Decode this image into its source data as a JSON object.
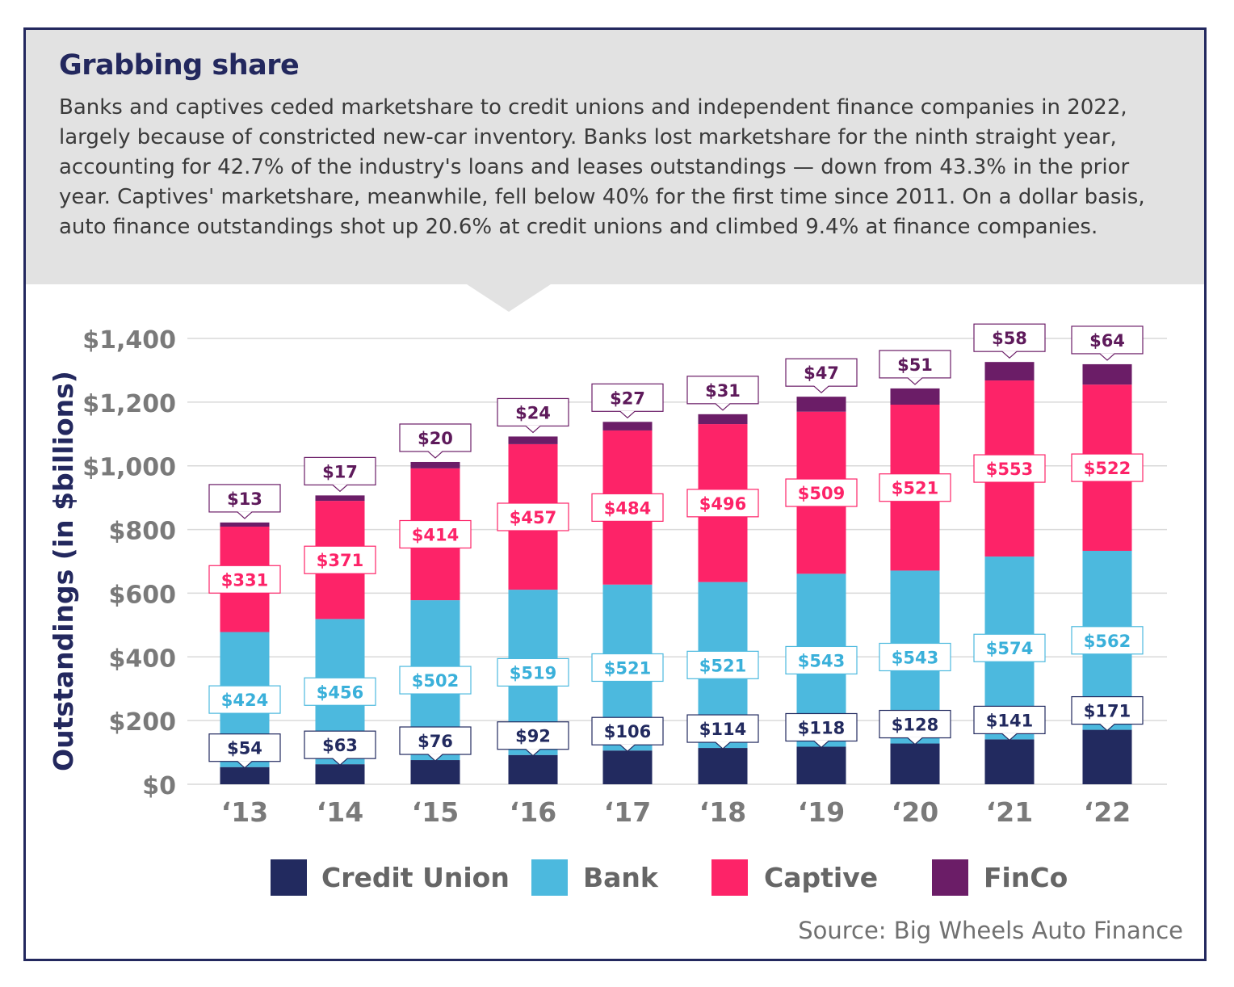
{
  "header": {
    "title": "Grabbing share",
    "subtitle": "Banks and captives ceded marketshare to credit unions and independent finance companies in 2022, largely because of constricted new-car inventory. Banks lost marketshare for the ninth straight year, accounting for 42.7% of the industry's loans and leases outstandings — down from 43.3% in the prior year. Captives' marketshare, meanwhile, fell below 40% for the first time since 2011. On a dollar basis, auto finance outstandings shot up 20.6% at credit unions and climbed 9.4% at finance companies."
  },
  "source": "Source: Big Wheels Auto Finance",
  "colors": {
    "frame": "#23285e",
    "header_bg": "#e2e2e2",
    "gridline": "#d9d9d9",
    "tick_text": "#7a7a7a",
    "ylabel_text": "#23285e"
  },
  "chart_data": {
    "type": "bar",
    "stacked": true,
    "categories": [
      "‘13",
      "‘14",
      "‘15",
      "‘16",
      "‘17",
      "‘18",
      "‘19",
      "‘20",
      "‘21",
      "‘22"
    ],
    "series": [
      {
        "name": "Credit Union",
        "color": "#222a5f",
        "values": [
          54,
          63,
          76,
          92,
          106,
          114,
          118,
          128,
          141,
          171
        ]
      },
      {
        "name": "Bank",
        "color": "#4cb9de",
        "values": [
          424,
          456,
          502,
          519,
          521,
          521,
          543,
          543,
          574,
          562
        ]
      },
      {
        "name": "Captive",
        "color": "#fd2368",
        "values": [
          331,
          371,
          414,
          457,
          484,
          496,
          509,
          521,
          553,
          522
        ]
      },
      {
        "name": "FinCo",
        "color": "#6b1d67",
        "values": [
          13,
          17,
          20,
          24,
          27,
          31,
          47,
          51,
          58,
          64
        ]
      }
    ],
    "ylabel": "Outstandings (in $billions)",
    "ylim": [
      0,
      1400
    ],
    "yticks": [
      0,
      200,
      400,
      600,
      800,
      1000,
      1200,
      1400
    ],
    "ytick_labels": [
      "$0",
      "$200",
      "$400",
      "$600",
      "$800",
      "$1,000",
      "$1,200",
      "$1,400"
    ],
    "value_prefix": "$",
    "grid": true,
    "legend": "bottom"
  }
}
